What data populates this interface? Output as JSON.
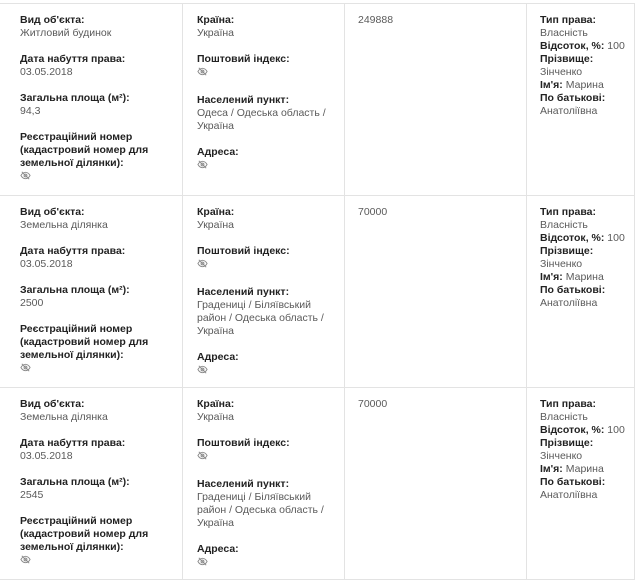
{
  "labels": {
    "object_type": "Вид об'єкта:",
    "acquired_date": "Дата набуття права:",
    "area": "Загальна площа (м²):",
    "reg_number": "Реєстраційний номер (кадастровий номер для земельної ділянки):",
    "country": "Країна:",
    "postal_code": "Поштовий індекс:",
    "locality": "Населений пункт:",
    "address": "Адреса:",
    "right_type": "Тип права:",
    "percent": "Відсоток, %:",
    "surname": "Прізвище:",
    "first_name": "Ім'я:",
    "patronymic": "По батькові:"
  },
  "hidden_icon": "eye-slash-icon",
  "rows": [
    {
      "object_type": "Житловий будинок",
      "acquired_date": "03.05.2018",
      "area": "94,3",
      "country": "Україна",
      "locality": "Одеса / Одеська область / Україна",
      "value": "249888",
      "right_type": "Власність",
      "percent": "100",
      "surname": "Зінченко",
      "first_name": "Марина",
      "patronymic": "Анатоліївна"
    },
    {
      "object_type": "Земельна ділянка",
      "acquired_date": "03.05.2018",
      "area": "2500",
      "country": "Україна",
      "locality": "Градениці / Біляївський район / Одеська область / Україна",
      "value": "70000",
      "right_type": "Власність",
      "percent": "100",
      "surname": "Зінченко",
      "first_name": "Марина",
      "patronymic": "Анатоліївна"
    },
    {
      "object_type": "Земельна ділянка",
      "acquired_date": "03.05.2018",
      "area": "2545",
      "country": "Україна",
      "locality": "Градениці / Біляївський район / Одеська область / Україна",
      "value": "70000",
      "right_type": "Власність",
      "percent": "100",
      "surname": "Зінченко",
      "first_name": "Марина",
      "patronymic": "Анатоліївна"
    }
  ]
}
